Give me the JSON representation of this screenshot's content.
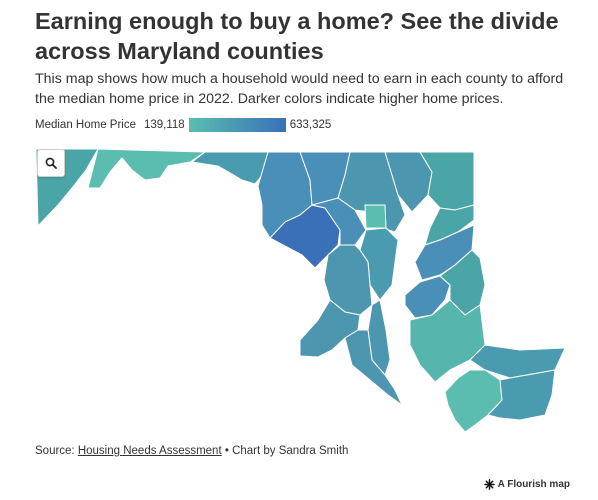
{
  "title": "Earning enough to buy a home? See the divide across Maryland counties",
  "subtitle": "This map shows how much a household would need to earn in each county to afford the median home price in 2022. Darker colors indicate higher home prices.",
  "legend": {
    "title": "Median Home Price",
    "min_label": "139,118",
    "max_label": "633,325",
    "min_value": 139118,
    "max_value": 633325,
    "low_color": "#5abdb0",
    "high_color": "#3a70b8"
  },
  "map": {
    "region": "Maryland counties",
    "zoom_button_icon": "search-icon",
    "region_colors": [
      "#4aa5a6",
      "#5abdb0",
      "#4a9bb0",
      "#4a8fb8",
      "#3a70b8",
      "#4d96b0",
      "#4d8fb5",
      "#56b5ad"
    ]
  },
  "footer": {
    "source_prefix": "Source: ",
    "source_link": "Housing Needs Assessment",
    "credit": " • Chart by Sandra Smith"
  },
  "branding": {
    "label": "A Flourish map"
  }
}
